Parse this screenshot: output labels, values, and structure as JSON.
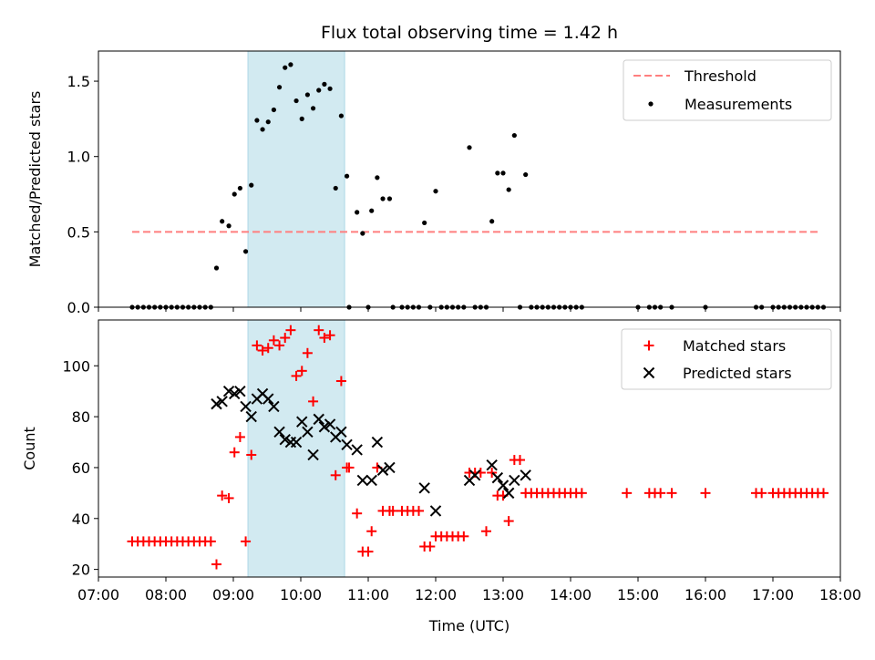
{
  "chart_data": {
    "type": "scatter",
    "title": "Flux total observing time = 1.42 h",
    "xlabel": "Time (UTC)",
    "x_unit": "hours UTC",
    "xlim": [
      "07:00",
      "18:00"
    ],
    "x_ticks": [
      "07:00",
      "08:00",
      "09:00",
      "10:00",
      "11:00",
      "12:00",
      "13:00",
      "14:00",
      "15:00",
      "16:00",
      "17:00",
      "18:00"
    ],
    "highlight_span": {
      "start": "09:13",
      "end": "10:39",
      "color": "#add8e6"
    },
    "top": {
      "ylabel": "Matched/Predicted stars",
      "ylim": [
        0,
        1.7
      ],
      "y_ticks": [
        0.0,
        0.5,
        1.0,
        1.5
      ],
      "y_tick_labels": [
        "0.0",
        "0.5",
        "1.0",
        "1.5"
      ],
      "legend_position": "upper right",
      "threshold": {
        "name": "Threshold",
        "y": 0.5,
        "x_start": "07:30",
        "x_end": "17:42",
        "color": "#ff7f7f",
        "style": "dashed"
      },
      "series": [
        {
          "name": "Measurements",
          "color": "#000000",
          "marker": "dot",
          "points": [
            [
              "07:30",
              0
            ],
            [
              "07:35",
              0
            ],
            [
              "07:40",
              0
            ],
            [
              "07:45",
              0
            ],
            [
              "07:50",
              0
            ],
            [
              "07:55",
              0
            ],
            [
              "08:00",
              0
            ],
            [
              "08:05",
              0
            ],
            [
              "08:10",
              0
            ],
            [
              "08:15",
              0
            ],
            [
              "08:20",
              0
            ],
            [
              "08:25",
              0
            ],
            [
              "08:30",
              0
            ],
            [
              "08:35",
              0
            ],
            [
              "08:40",
              0
            ],
            [
              "08:45",
              0.26
            ],
            [
              "08:50",
              0.57
            ],
            [
              "08:56",
              0.54
            ],
            [
              "09:01",
              0.75
            ],
            [
              "09:06",
              0.79
            ],
            [
              "09:11",
              0.37
            ],
            [
              "09:16",
              0.81
            ],
            [
              "09:21",
              1.24
            ],
            [
              "09:26",
              1.18
            ],
            [
              "09:31",
              1.23
            ],
            [
              "09:36",
              1.31
            ],
            [
              "09:41",
              1.46
            ],
            [
              "09:46",
              1.59
            ],
            [
              "09:51",
              1.61
            ],
            [
              "09:56",
              1.37
            ],
            [
              "10:01",
              1.25
            ],
            [
              "10:06",
              1.41
            ],
            [
              "10:11",
              1.32
            ],
            [
              "10:16",
              1.44
            ],
            [
              "10:21",
              1.48
            ],
            [
              "10:26",
              1.45
            ],
            [
              "10:31",
              0.79
            ],
            [
              "10:36",
              1.27
            ],
            [
              "10:41",
              0.87
            ],
            [
              "10:43",
              0
            ],
            [
              "10:50",
              0.63
            ],
            [
              "10:55",
              0.49
            ],
            [
              "11:00",
              0
            ],
            [
              "11:03",
              0.64
            ],
            [
              "11:08",
              0.86
            ],
            [
              "11:13",
              0.72
            ],
            [
              "11:19",
              0.72
            ],
            [
              "11:22",
              0
            ],
            [
              "11:30",
              0
            ],
            [
              "11:35",
              0
            ],
            [
              "11:40",
              0
            ],
            [
              "11:45",
              0
            ],
            [
              "11:50",
              0.56
            ],
            [
              "11:55",
              0
            ],
            [
              "12:00",
              0.77
            ],
            [
              "12:05",
              0
            ],
            [
              "12:10",
              0
            ],
            [
              "12:15",
              0
            ],
            [
              "12:20",
              0
            ],
            [
              "12:25",
              0
            ],
            [
              "12:30",
              1.06
            ],
            [
              "12:35",
              0
            ],
            [
              "12:40",
              0
            ],
            [
              "12:45",
              0
            ],
            [
              "12:50",
              0.57
            ],
            [
              "12:55",
              0.89
            ],
            [
              "13:00",
              0.89
            ],
            [
              "13:05",
              0.78
            ],
            [
              "13:10",
              1.14
            ],
            [
              "13:15",
              0
            ],
            [
              "13:20",
              0.88
            ],
            [
              "13:25",
              0
            ],
            [
              "13:30",
              0
            ],
            [
              "13:35",
              0
            ],
            [
              "13:40",
              0
            ],
            [
              "13:45",
              0
            ],
            [
              "13:50",
              0
            ],
            [
              "13:55",
              0
            ],
            [
              "14:00",
              0
            ],
            [
              "14:05",
              0
            ],
            [
              "14:10",
              0
            ],
            [
              "15:00",
              0
            ],
            [
              "15:10",
              0
            ],
            [
              "15:15",
              0
            ],
            [
              "15:20",
              0
            ],
            [
              "15:30",
              0
            ],
            [
              "16:00",
              0
            ],
            [
              "16:45",
              0
            ],
            [
              "16:50",
              0
            ],
            [
              "17:00",
              0
            ],
            [
              "17:05",
              0
            ],
            [
              "17:10",
              0
            ],
            [
              "17:15",
              0
            ],
            [
              "17:20",
              0
            ],
            [
              "17:25",
              0
            ],
            [
              "17:30",
              0
            ],
            [
              "17:35",
              0
            ],
            [
              "17:40",
              0
            ],
            [
              "17:45",
              0
            ]
          ]
        }
      ]
    },
    "bottom": {
      "ylabel": "Count",
      "ylim": [
        17,
        118
      ],
      "y_ticks": [
        20,
        40,
        60,
        80,
        100
      ],
      "legend_position": "upper right",
      "series": [
        {
          "name": "Matched stars",
          "color": "#ff0000",
          "marker": "plus",
          "points": [
            [
              "07:30",
              31
            ],
            [
              "07:35",
              31
            ],
            [
              "07:40",
              31
            ],
            [
              "07:45",
              31
            ],
            [
              "07:50",
              31
            ],
            [
              "07:55",
              31
            ],
            [
              "08:00",
              31
            ],
            [
              "08:05",
              31
            ],
            [
              "08:10",
              31
            ],
            [
              "08:15",
              31
            ],
            [
              "08:20",
              31
            ],
            [
              "08:25",
              31
            ],
            [
              "08:30",
              31
            ],
            [
              "08:35",
              31
            ],
            [
              "08:40",
              31
            ],
            [
              "08:45",
              22
            ],
            [
              "08:50",
              49
            ],
            [
              "08:56",
              48
            ],
            [
              "09:01",
              66
            ],
            [
              "09:06",
              72
            ],
            [
              "09:11",
              31
            ],
            [
              "09:16",
              65
            ],
            [
              "09:21",
              108
            ],
            [
              "09:26",
              106
            ],
            [
              "09:31",
              107
            ],
            [
              "09:36",
              110
            ],
            [
              "09:41",
              108
            ],
            [
              "09:46",
              111
            ],
            [
              "09:51",
              114
            ],
            [
              "09:56",
              96
            ],
            [
              "10:01",
              98
            ],
            [
              "10:06",
              105
            ],
            [
              "10:11",
              86
            ],
            [
              "10:16",
              114
            ],
            [
              "10:21",
              111
            ],
            [
              "10:26",
              112
            ],
            [
              "10:31",
              57
            ],
            [
              "10:36",
              94
            ],
            [
              "10:41",
              60
            ],
            [
              "10:43",
              60
            ],
            [
              "10:50",
              42
            ],
            [
              "10:55",
              27
            ],
            [
              "11:00",
              27
            ],
            [
              "11:03",
              35
            ],
            [
              "11:08",
              60
            ],
            [
              "11:13",
              43
            ],
            [
              "11:19",
              43
            ],
            [
              "11:22",
              43
            ],
            [
              "11:30",
              43
            ],
            [
              "11:35",
              43
            ],
            [
              "11:40",
              43
            ],
            [
              "11:45",
              43
            ],
            [
              "11:50",
              29
            ],
            [
              "11:55",
              29
            ],
            [
              "12:00",
              33
            ],
            [
              "12:05",
              33
            ],
            [
              "12:10",
              33
            ],
            [
              "12:15",
              33
            ],
            [
              "12:20",
              33
            ],
            [
              "12:25",
              33
            ],
            [
              "12:30",
              58
            ],
            [
              "12:35",
              58
            ],
            [
              "12:40",
              58
            ],
            [
              "12:45",
              35
            ],
            [
              "12:50",
              58
            ],
            [
              "12:55",
              49
            ],
            [
              "13:00",
              49
            ],
            [
              "13:05",
              39
            ],
            [
              "13:10",
              63
            ],
            [
              "13:15",
              63
            ],
            [
              "13:20",
              50
            ],
            [
              "13:25",
              50
            ],
            [
              "13:30",
              50
            ],
            [
              "13:35",
              50
            ],
            [
              "13:40",
              50
            ],
            [
              "13:45",
              50
            ],
            [
              "13:50",
              50
            ],
            [
              "13:55",
              50
            ],
            [
              "14:00",
              50
            ],
            [
              "14:05",
              50
            ],
            [
              "14:10",
              50
            ],
            [
              "14:50",
              50
            ],
            [
              "15:10",
              50
            ],
            [
              "15:15",
              50
            ],
            [
              "15:20",
              50
            ],
            [
              "15:30",
              50
            ],
            [
              "16:00",
              50
            ],
            [
              "16:45",
              50
            ],
            [
              "16:50",
              50
            ],
            [
              "17:00",
              50
            ],
            [
              "17:05",
              50
            ],
            [
              "17:10",
              50
            ],
            [
              "17:15",
              50
            ],
            [
              "17:20",
              50
            ],
            [
              "17:25",
              50
            ],
            [
              "17:30",
              50
            ],
            [
              "17:35",
              50
            ],
            [
              "17:40",
              50
            ],
            [
              "17:45",
              50
            ]
          ]
        },
        {
          "name": "Predicted stars",
          "color": "#000000",
          "marker": "x",
          "points": [
            [
              "08:45",
              85
            ],
            [
              "08:50",
              86
            ],
            [
              "08:56",
              90
            ],
            [
              "09:01",
              89
            ],
            [
              "09:06",
              90
            ],
            [
              "09:11",
              84
            ],
            [
              "09:16",
              80
            ],
            [
              "09:21",
              87
            ],
            [
              "09:26",
              89
            ],
            [
              "09:31",
              87
            ],
            [
              "09:36",
              84
            ],
            [
              "09:41",
              74
            ],
            [
              "09:46",
              71
            ],
            [
              "09:51",
              70
            ],
            [
              "09:56",
              70
            ],
            [
              "10:01",
              78
            ],
            [
              "10:06",
              74
            ],
            [
              "10:11",
              65
            ],
            [
              "10:16",
              79
            ],
            [
              "10:21",
              76
            ],
            [
              "10:26",
              77
            ],
            [
              "10:31",
              72
            ],
            [
              "10:36",
              74
            ],
            [
              "10:41",
              69
            ],
            [
              "10:50",
              67
            ],
            [
              "10:55",
              55
            ],
            [
              "11:03",
              55
            ],
            [
              "11:08",
              70
            ],
            [
              "11:13",
              59
            ],
            [
              "11:19",
              60
            ],
            [
              "11:50",
              52
            ],
            [
              "12:00",
              43
            ],
            [
              "12:30",
              55
            ],
            [
              "12:35",
              57
            ],
            [
              "12:50",
              61
            ],
            [
              "12:55",
              56
            ],
            [
              "13:00",
              53
            ],
            [
              "13:05",
              50
            ],
            [
              "13:10",
              55
            ],
            [
              "13:20",
              57
            ]
          ]
        }
      ]
    }
  }
}
